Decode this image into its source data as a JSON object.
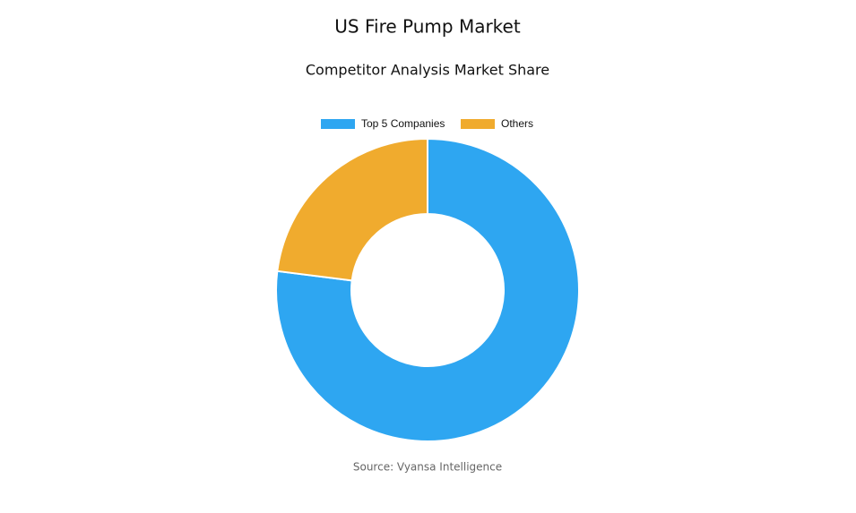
{
  "chart_data": {
    "type": "donut",
    "title": "US Fire Pump Market",
    "subtitle": "Competitor Analysis Market Share",
    "categories": [
      "Top 5 Companies",
      "Others"
    ],
    "values": [
      77,
      23
    ],
    "colors": [
      "#2ea6f1",
      "#f0ab2e"
    ],
    "source": "Source: Vyansa Intelligence"
  }
}
